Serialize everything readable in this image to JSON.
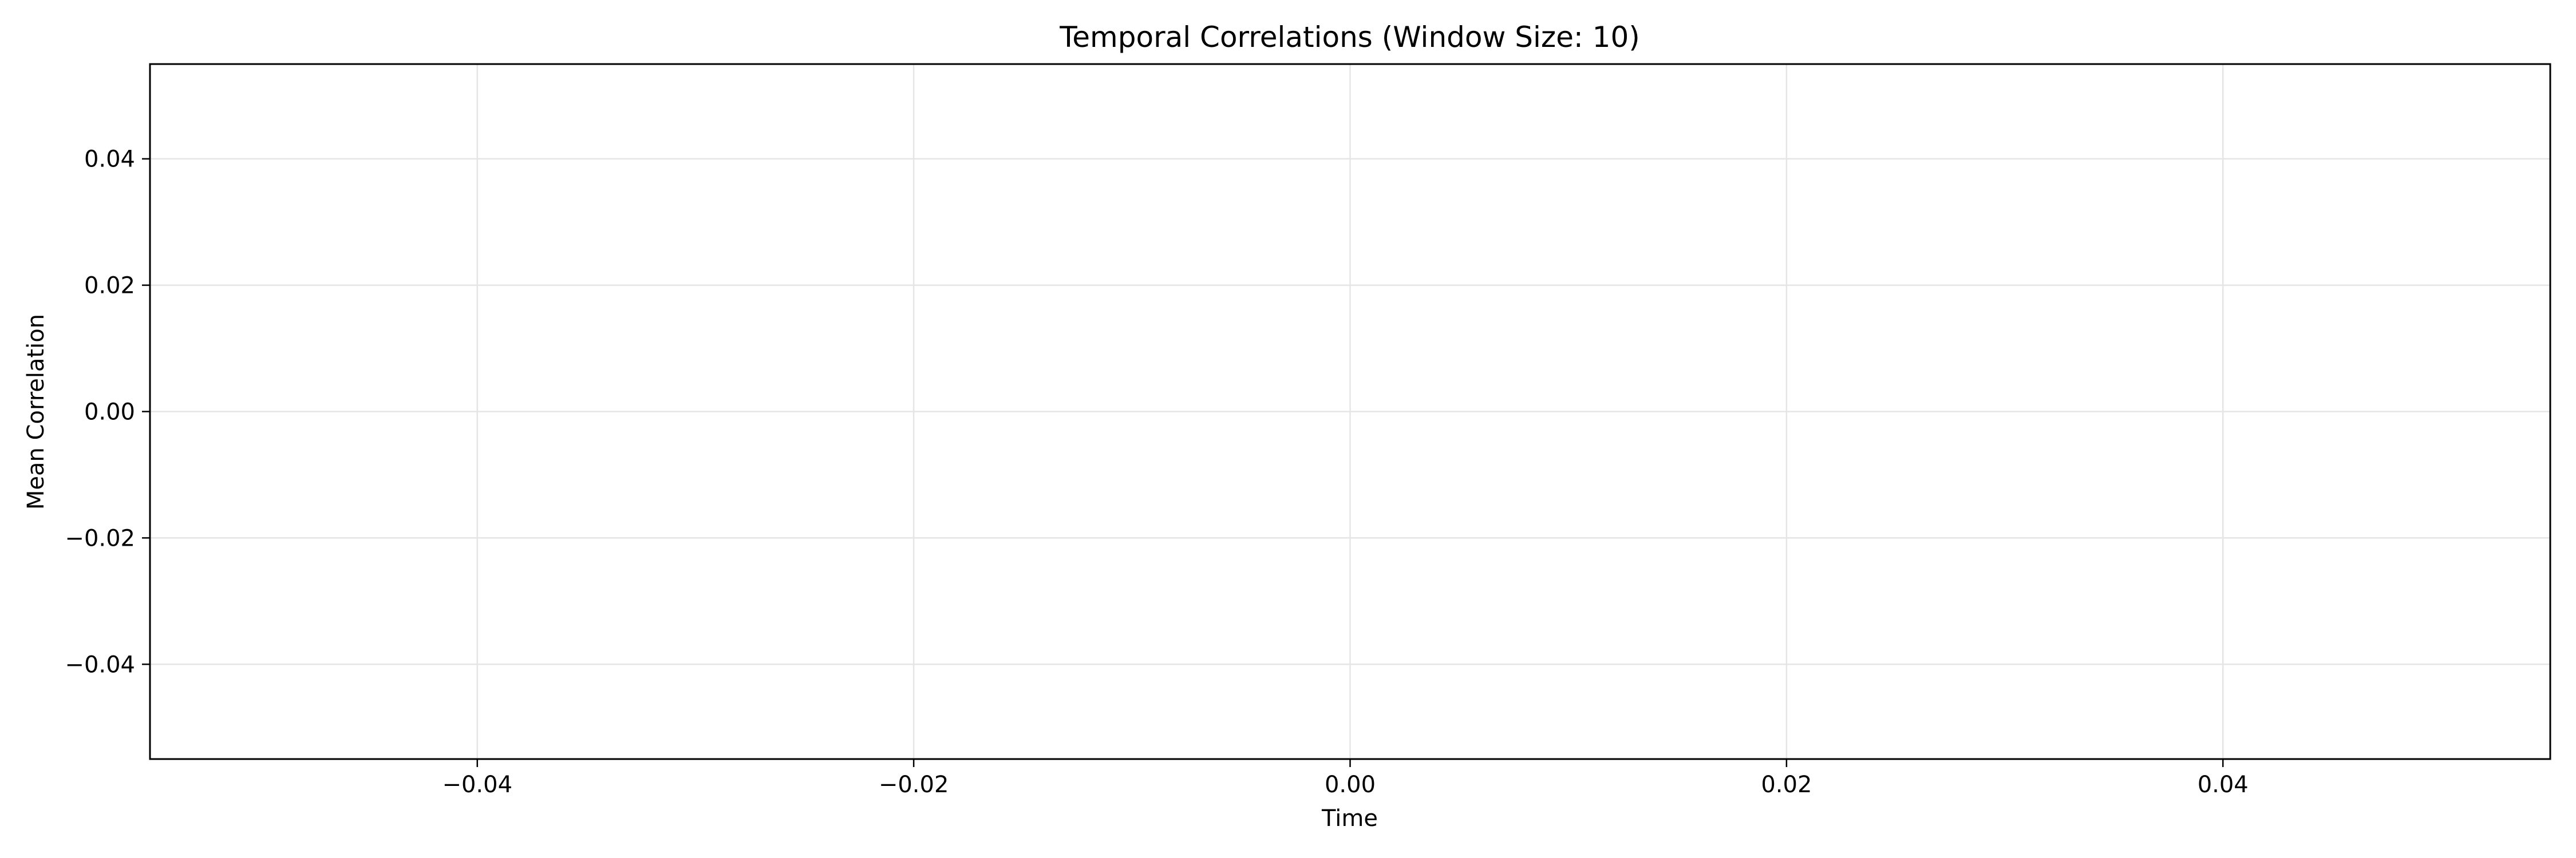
{
  "chart_data": {
    "type": "line",
    "title": "Temporal Correlations (Window Size: 10)",
    "xlabel": "Time",
    "ylabel": "Mean Correlation",
    "xlim": [
      -0.055,
      0.055
    ],
    "ylim": [
      -0.055,
      0.055
    ],
    "x_ticks": [
      {
        "value": -0.04,
        "label": "−0.04"
      },
      {
        "value": -0.02,
        "label": "−0.02"
      },
      {
        "value": 0.0,
        "label": "0.00"
      },
      {
        "value": 0.02,
        "label": "0.02"
      },
      {
        "value": 0.04,
        "label": "0.04"
      }
    ],
    "y_ticks": [
      {
        "value": 0.04,
        "label": "0.04"
      },
      {
        "value": 0.02,
        "label": "0.02"
      },
      {
        "value": 0.0,
        "label": "0.00"
      },
      {
        "value": -0.02,
        "label": "−0.02"
      },
      {
        "value": -0.04,
        "label": "−0.04"
      }
    ],
    "grid": true,
    "series": [],
    "colors": {
      "grid": "#e5e5e5",
      "axes": "#000000",
      "background": "#ffffff"
    }
  }
}
